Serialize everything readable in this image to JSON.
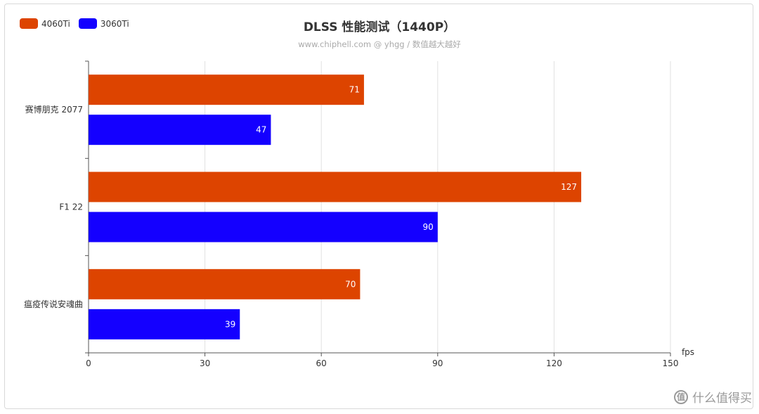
{
  "title": "DLSS 性能测试（1440P）",
  "subtitle": "www.chiphell.com @ yhgg / 数值越大越好",
  "legend": [
    {
      "name": "4060Ti",
      "color": "#DD4400"
    },
    {
      "name": "3060Ti",
      "color": "#1400FF"
    }
  ],
  "watermark": {
    "icon_text": "值",
    "text": "什么值得买"
  },
  "chart_data": {
    "type": "bar",
    "orientation": "horizontal",
    "title": "DLSS 性能测试（1440P）",
    "subtitle": "www.chiphell.com @ yhgg / 数值越大越好",
    "categories": [
      "赛博朋克 2077",
      "F1 22",
      "瘟疫传说安魂曲"
    ],
    "series": [
      {
        "name": "4060Ti",
        "color": "#DD4400",
        "values": [
          71,
          127,
          70
        ]
      },
      {
        "name": "3060Ti",
        "color": "#1400FF",
        "values": [
          47,
          90,
          39
        ]
      }
    ],
    "xlabel": "fps",
    "xlim": [
      0,
      150
    ],
    "xticks": [
      0,
      30,
      60,
      90,
      120,
      150
    ],
    "grid": true,
    "legend_position": "top-left",
    "data_labels": true
  }
}
